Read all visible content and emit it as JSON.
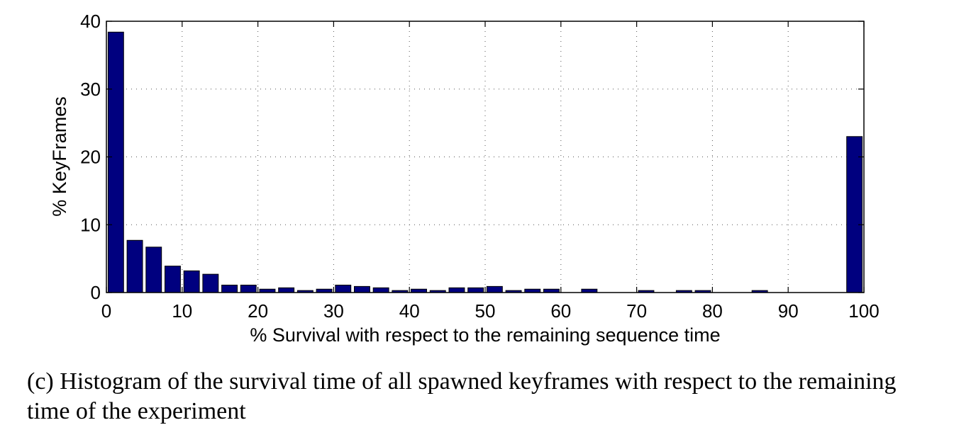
{
  "chart_data": {
    "type": "bar",
    "title": "",
    "xlabel": "% Survival with respect to the remaining sequence time",
    "ylabel": "% KeyFrames",
    "xlim": [
      0,
      100
    ],
    "ylim": [
      0,
      40
    ],
    "xticks": [
      0,
      10,
      20,
      30,
      40,
      50,
      60,
      70,
      80,
      90,
      100
    ],
    "yticks": [
      0,
      10,
      20,
      30,
      40
    ],
    "grid": true,
    "bar_color": "#00007f",
    "bin_width": 2.5,
    "x": [
      1.25,
      3.75,
      6.25,
      8.75,
      11.25,
      13.75,
      16.25,
      18.75,
      21.25,
      23.75,
      26.25,
      28.75,
      31.25,
      33.75,
      36.25,
      38.75,
      41.25,
      43.75,
      46.25,
      48.75,
      51.25,
      53.75,
      56.25,
      58.75,
      61.25,
      63.75,
      66.25,
      68.75,
      71.25,
      73.75,
      76.25,
      78.75,
      81.25,
      83.75,
      86.25,
      88.75,
      91.25,
      93.75,
      96.25,
      98.75
    ],
    "values": [
      38.4,
      7.7,
      6.7,
      3.9,
      3.2,
      2.7,
      1.1,
      1.1,
      0.5,
      0.7,
      0.3,
      0.5,
      1.1,
      0.9,
      0.7,
      0.3,
      0.5,
      0.3,
      0.7,
      0.7,
      0.9,
      0.3,
      0.5,
      0.5,
      0,
      0.5,
      0,
      0,
      0.3,
      0,
      0.3,
      0.3,
      0,
      0,
      0.3,
      0,
      0,
      0,
      0,
      23.0
    ]
  },
  "caption": "(c) Histogram of the survival time of all spawned keyframes with respect to the remaining time of the experiment"
}
